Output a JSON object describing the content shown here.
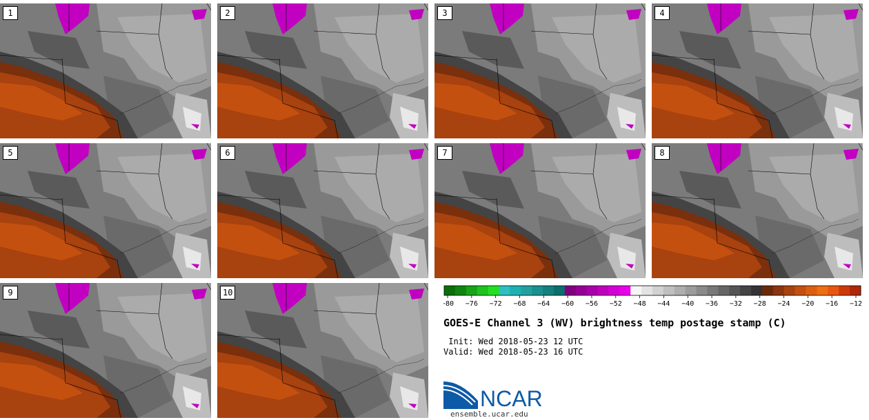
{
  "panels": [
    {
      "label": "1"
    },
    {
      "label": "2"
    },
    {
      "label": "3"
    },
    {
      "label": "4"
    },
    {
      "label": "5"
    },
    {
      "label": "6"
    },
    {
      "label": "7"
    },
    {
      "label": "8"
    },
    {
      "label": "9"
    },
    {
      "label": "10"
    }
  ],
  "legend": {
    "colors": [
      "#0b6d0b",
      "#0f850f",
      "#17a317",
      "#1dc21d",
      "#22df22",
      "#2ebfbf",
      "#1fb0b0",
      "#22a0a0",
      "#1a9090",
      "#137f7f",
      "#0c6d6d",
      "#800080",
      "#950095",
      "#aa00aa",
      "#bf00bf",
      "#d500d5",
      "#ea00ea",
      "#f5f5f5",
      "#e3e3e3",
      "#d1d1d1",
      "#bfbfbf",
      "#aeaeae",
      "#9c9c9c",
      "#8a8a8a",
      "#787878",
      "#666666",
      "#555555",
      "#444444",
      "#333333",
      "#6a2a0a",
      "#8a3510",
      "#a8420f",
      "#c4500f",
      "#dc5f10",
      "#ee6e10",
      "#e85612",
      "#cc3a0a",
      "#b02606"
    ],
    "tick_labels": [
      "−80",
      "−76",
      "−72",
      "−68",
      "−64",
      "−60",
      "−56",
      "−52",
      "−48",
      "−44",
      "−40",
      "−36",
      "−32",
      "−28",
      "−24",
      "−20",
      "−16",
      "−12"
    ]
  },
  "title": "GOES-E Channel 3 (WV) brightness temp postage stamp (C)",
  "init_line": " Init: Wed 2018-05-23 12 UTC",
  "valid_line": "Valid: Wed 2018-05-23 16 UTC",
  "logo_text": "NCAR",
  "site": "ensemble.ucar.edu"
}
